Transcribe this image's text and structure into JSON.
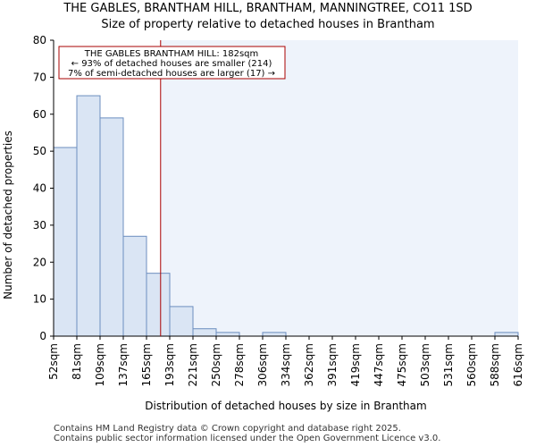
{
  "chart_data": {
    "type": "bar",
    "title": "THE GABLES, BRANTHAM HILL, BRANTHAM, MANNINGTREE, CO11 1SD",
    "subtitle": "Size of property relative to detached houses in Brantham",
    "xlabel": "Distribution of detached houses by size in Brantham",
    "ylabel": "Number of detached properties",
    "bin_edges": [
      52,
      81,
      109,
      137,
      165,
      193,
      221,
      250,
      278,
      306,
      334,
      362,
      391,
      419,
      447,
      475,
      503,
      531,
      560,
      588,
      616
    ],
    "tick_labels": [
      "52sqm",
      "81sqm",
      "109sqm",
      "137sqm",
      "165sqm",
      "193sqm",
      "221sqm",
      "250sqm",
      "278sqm",
      "306sqm",
      "334sqm",
      "362sqm",
      "391sqm",
      "419sqm",
      "447sqm",
      "475sqm",
      "503sqm",
      "531sqm",
      "560sqm",
      "588sqm",
      "616sqm"
    ],
    "values": [
      51,
      65,
      59,
      27,
      17,
      8,
      2,
      1,
      0,
      1,
      0,
      0,
      0,
      0,
      0,
      0,
      0,
      0,
      0,
      1
    ],
    "ylim": [
      0,
      80
    ],
    "yticks": [
      0,
      10,
      20,
      30,
      40,
      50,
      60,
      70,
      80
    ],
    "marker_value": 182,
    "annotation": [
      "THE GABLES BRANTHAM HILL: 182sqm",
      "← 93% of detached houses are smaller (214)",
      "7% of semi-detached houses are larger (17) →"
    ],
    "colors": {
      "bar_fill": "#dae5f4",
      "bar_edge": "#6c8ebf",
      "marker": "#aa0000",
      "shade": "#eef3fb"
    }
  },
  "footer": {
    "line1": "Contains HM Land Registry data © Crown copyright and database right 2025.",
    "line2": "Contains public sector information licensed under the Open Government Licence v3.0."
  }
}
